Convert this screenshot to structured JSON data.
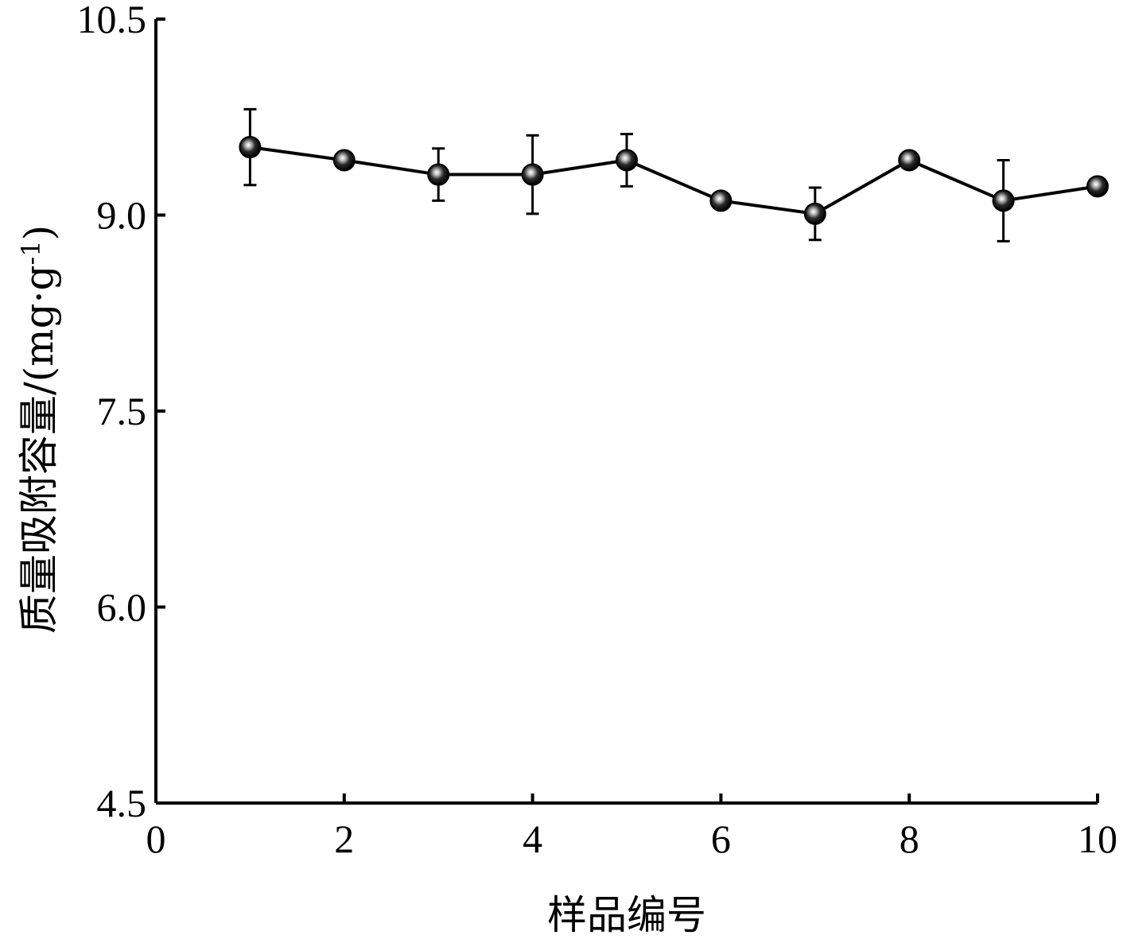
{
  "chart_data": {
    "type": "line",
    "xlabel": "样品编号",
    "ylabel": "质量吸附容量/(mg·g",
    "ylabel_superscript": "-1",
    "ylabel_close": ")",
    "xlim": [
      0,
      10
    ],
    "ylim": [
      4.5,
      10.5
    ],
    "xticks": [
      0,
      2,
      4,
      6,
      8,
      10
    ],
    "xtick_labels": [
      "0",
      "2",
      "4",
      "6",
      "8",
      "10"
    ],
    "yticks": [
      4.5,
      6.0,
      7.5,
      9.0,
      10.5
    ],
    "ytick_labels": [
      "4.5",
      "6.0",
      "7.5",
      "9.0",
      "10.5"
    ],
    "grid": false,
    "legend": "none",
    "series": [
      {
        "x": [
          1,
          2,
          3,
          4,
          5,
          6,
          7,
          8,
          9,
          10
        ],
        "y": [
          9.52,
          9.42,
          9.31,
          9.31,
          9.42,
          9.11,
          9.01,
          9.42,
          9.11,
          9.22
        ],
        "error": [
          0.29,
          0.04,
          0.2,
          0.3,
          0.2,
          0.04,
          0.2,
          0.04,
          0.31,
          0.04
        ],
        "marker": "circle",
        "color": "#000000"
      }
    ]
  }
}
